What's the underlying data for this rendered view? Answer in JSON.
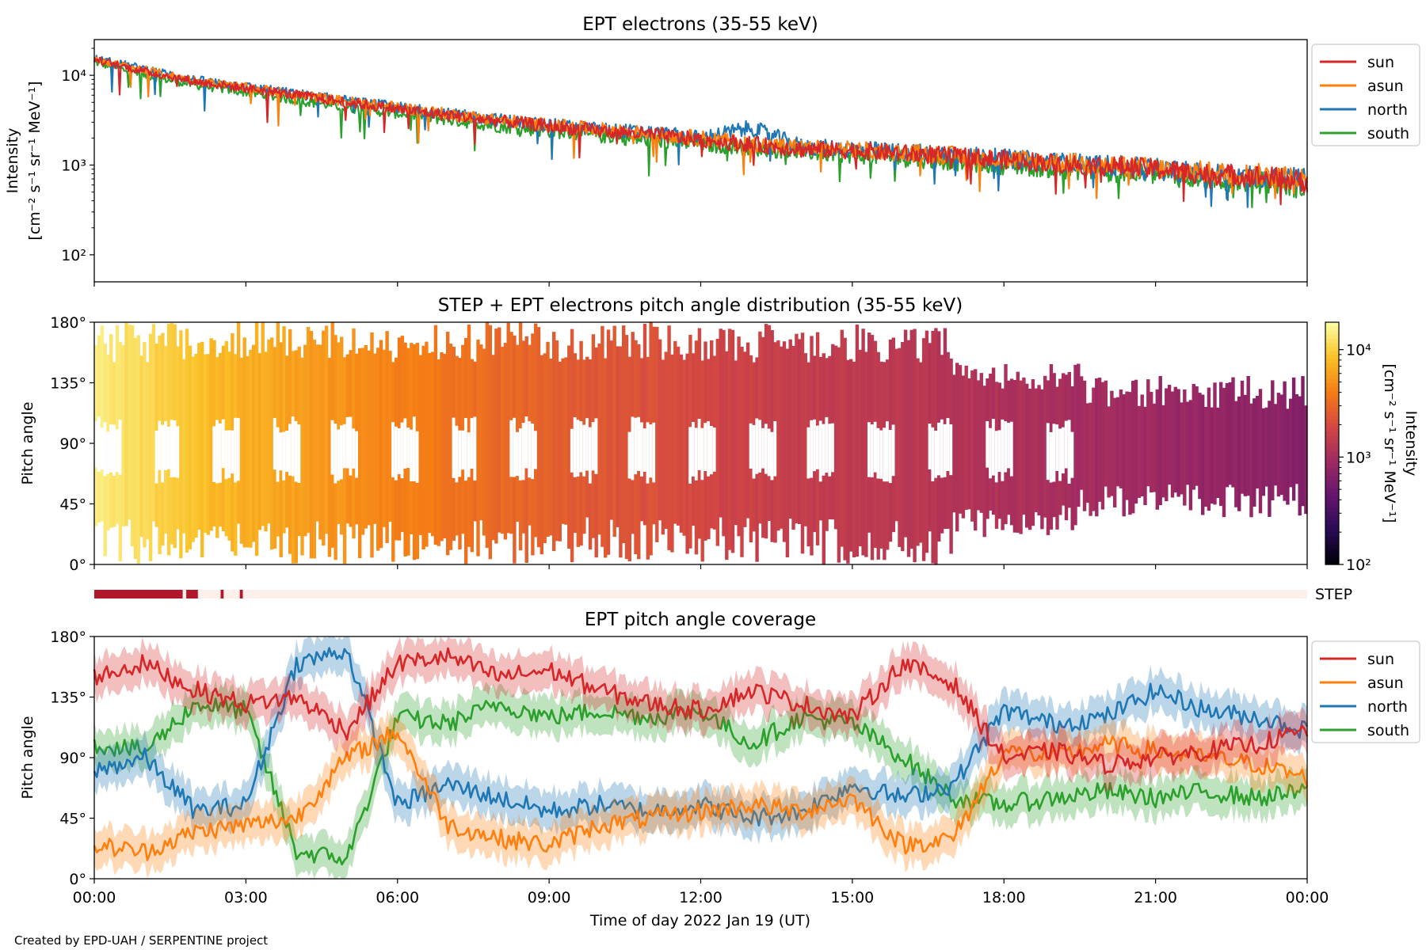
{
  "footer": {
    "credit": "Created by EPD-UAH / SERPENTINE project"
  },
  "x_axis": {
    "label": "Time of day 2022 Jan 19 (UT)",
    "ticks": [
      0,
      3,
      6,
      9,
      12,
      15,
      18,
      21,
      24
    ],
    "tick_labels": [
      "00:00",
      "03:00",
      "06:00",
      "09:00",
      "12:00",
      "15:00",
      "18:00",
      "21:00",
      "00:00"
    ],
    "range_hours": [
      0,
      24
    ]
  },
  "colors": {
    "sun": "#d62728",
    "asun": "#ff7f0e",
    "north": "#1f77b4",
    "south": "#2ca02c",
    "step_bar": "#b2182b",
    "step_bg": "#fdf0ea"
  },
  "chart_data": [
    {
      "type": "line",
      "title": "EPT electrons (35-55 keV)",
      "ylabel_line1": "Intensity",
      "ylabel_line2": "[cm⁻² s⁻¹ sr⁻¹ MeV⁻¹]",
      "yscale": "log",
      "ylim": [
        50,
        25000
      ],
      "ytick_values": [
        100,
        1000,
        10000
      ],
      "ytick_labels": [
        "10²",
        "10³",
        "10⁴"
      ],
      "legend": [
        "sun",
        "asun",
        "north",
        "south"
      ],
      "legend_position": "upper right, outside",
      "x_hours": [
        0,
        1,
        2,
        3,
        4,
        5,
        6,
        7,
        8,
        9,
        10,
        11,
        12,
        13,
        14,
        15,
        16,
        17,
        18,
        19,
        20,
        21,
        22,
        23,
        24
      ],
      "series": [
        {
          "name": "sun",
          "values": [
            15000,
            11000,
            8500,
            7200,
            6000,
            5000,
            4200,
            3600,
            3100,
            2700,
            2400,
            2200,
            1900,
            1700,
            1500,
            1450,
            1350,
            1250,
            1150,
            1050,
            980,
            900,
            800,
            750,
            650
          ]
        },
        {
          "name": "asun",
          "values": [
            15000,
            11500,
            8700,
            7300,
            6100,
            5100,
            4400,
            3700,
            3200,
            2800,
            2500,
            2250,
            2000,
            1750,
            1550,
            1480,
            1380,
            1280,
            1180,
            1080,
            1000,
            920,
            830,
            780,
            700
          ]
        },
        {
          "name": "north",
          "values": [
            15500,
            11800,
            8900,
            7500,
            6200,
            5200,
            4400,
            3700,
            3200,
            2800,
            2500,
            2300,
            2000,
            2600,
            1600,
            1500,
            1400,
            1300,
            1180,
            1080,
            1000,
            900,
            800,
            760,
            680
          ]
        },
        {
          "name": "south",
          "values": [
            14000,
            10000,
            7800,
            6500,
            5300,
            4400,
            3800,
            3200,
            2700,
            2400,
            2100,
            1900,
            1700,
            1550,
            1400,
            1300,
            1200,
            1100,
            1000,
            920,
            850,
            780,
            700,
            650,
            560
          ]
        }
      ]
    },
    {
      "type": "heatmap",
      "title": "STEP + EPT electrons pitch angle distribution (35-55 keV)",
      "ylabel": "Pitch angle",
      "ylim": [
        0,
        180
      ],
      "ytick_values": [
        0,
        45,
        90,
        135,
        180
      ],
      "ytick_labels": [
        "0°",
        "45°",
        "90°",
        "135°",
        "180°"
      ],
      "colorbar": {
        "label_line1": "Intensity",
        "label_line2": "[cm⁻² s⁻¹ sr⁻¹ MeV⁻¹]",
        "scale": "log",
        "range": [
          100,
          18000
        ],
        "tick_values": [
          100,
          1000,
          10000
        ],
        "tick_labels": [
          "10²",
          "10³",
          "10⁴"
        ],
        "colormap": "inferno"
      },
      "x_hours": [
        0,
        1,
        2,
        3,
        4,
        5,
        6,
        7,
        8,
        9,
        10,
        11,
        12,
        13,
        14,
        15,
        16,
        17,
        18,
        19,
        20,
        21,
        22,
        23,
        24
      ],
      "column_intensity": [
        15000,
        11000,
        8500,
        7200,
        6000,
        5000,
        4200,
        3600,
        3100,
        2700,
        2400,
        2200,
        1900,
        1700,
        1500,
        1450,
        1350,
        1250,
        1150,
        1050,
        980,
        900,
        800,
        750,
        650
      ]
    },
    {
      "type": "bar",
      "label": "STEP",
      "coverage_intervals_hours": [
        [
          0,
          1.75
        ],
        [
          1.82,
          2.05
        ],
        [
          2.5,
          2.56
        ],
        [
          2.88,
          2.94
        ]
      ]
    },
    {
      "type": "line",
      "title": "EPT pitch angle coverage",
      "ylabel": "Pitch angle",
      "ylim": [
        0,
        180
      ],
      "ytick_values": [
        0,
        45,
        90,
        135,
        180
      ],
      "ytick_labels": [
        "0°",
        "45°",
        "90°",
        "135°",
        "180°"
      ],
      "legend": [
        "sun",
        "asun",
        "north",
        "south"
      ],
      "legend_position": "upper right, outside",
      "x_hours": [
        0,
        1,
        2,
        3,
        4,
        5,
        6,
        7,
        8,
        9,
        10,
        11,
        12,
        13,
        14,
        15,
        16,
        17,
        18,
        19,
        20,
        21,
        22,
        23,
        24
      ],
      "series": [
        {
          "name": "sun",
          "values": [
            150,
            160,
            140,
            130,
            135,
            110,
            160,
            165,
            150,
            155,
            140,
            130,
            125,
            140,
            130,
            120,
            160,
            145,
            90,
            95,
            85,
            90,
            95,
            100,
            110
          ]
        },
        {
          "name": "asun",
          "values": [
            25,
            20,
            35,
            40,
            45,
            90,
            110,
            40,
            30,
            25,
            40,
            45,
            50,
            55,
            50,
            60,
            25,
            30,
            95,
            90,
            100,
            95,
            90,
            85,
            75
          ]
        },
        {
          "name": "north",
          "values": [
            80,
            90,
            50,
            55,
            160,
            170,
            55,
            70,
            60,
            50,
            55,
            50,
            55,
            45,
            50,
            70,
            60,
            70,
            125,
            115,
            120,
            140,
            125,
            120,
            110
          ]
        },
        {
          "name": "south",
          "values": [
            100,
            95,
            130,
            125,
            20,
            15,
            120,
            115,
            130,
            120,
            125,
            120,
            125,
            100,
            120,
            115,
            90,
            60,
            55,
            60,
            65,
            60,
            65,
            60,
            65
          ]
        }
      ]
    }
  ]
}
